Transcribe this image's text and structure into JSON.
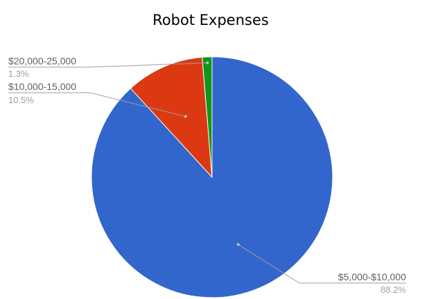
{
  "chart_data": {
    "type": "pie",
    "title": "Robot Expenses",
    "slices": [
      {
        "label": "$5,000-$10,000",
        "value": 88.2,
        "percent_label": "88.2%",
        "color": "#3366cc"
      },
      {
        "label": "$10,000-15,000",
        "value": 10.5,
        "percent_label": "10.5%",
        "color": "#dc3912"
      },
      {
        "label": "$20,000-25,000",
        "value": 1.3,
        "percent_label": "1.3%",
        "color": "#109618"
      }
    ],
    "legend": "none",
    "slice_labels": "outside-with-leader-lines"
  }
}
